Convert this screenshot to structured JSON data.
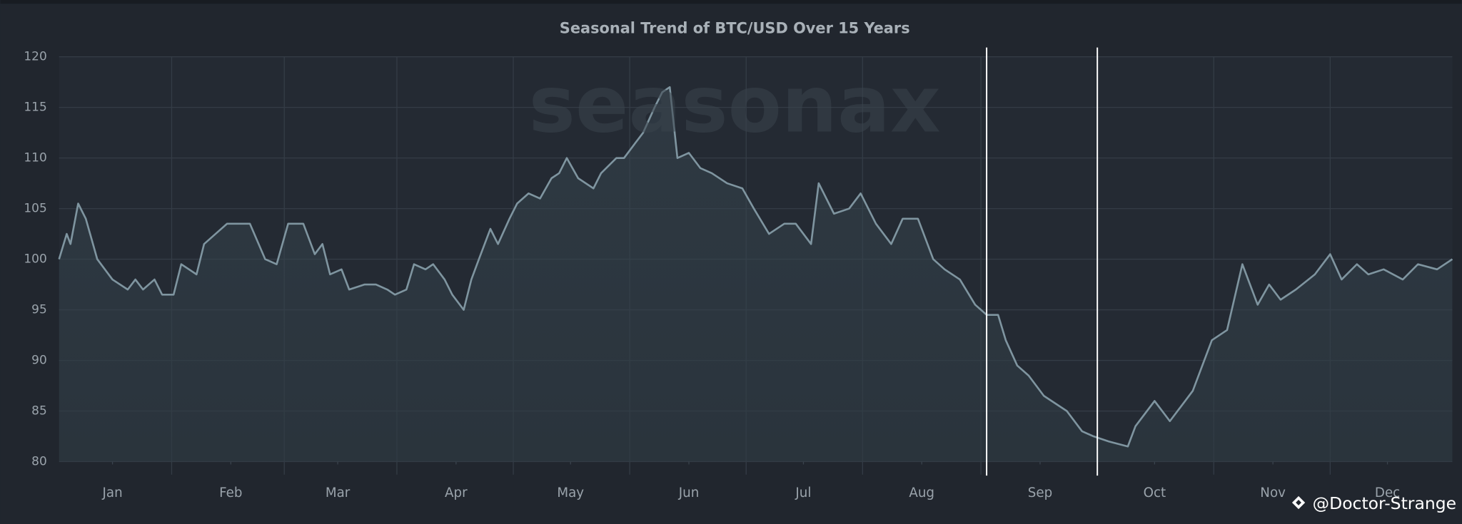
{
  "chart_data": {
    "type": "line",
    "title": "Seasonal Trend of BTC/USD Over 15 Years",
    "watermark": "seasonax",
    "credit": "@Doctor-Strange",
    "x": [
      0,
      2,
      3,
      5,
      7,
      10,
      14,
      18,
      20,
      22,
      25,
      27,
      30,
      32,
      36,
      38,
      41,
      44,
      47,
      50,
      54,
      57,
      60,
      64,
      67,
      69,
      71,
      74,
      76,
      80,
      83,
      86,
      88,
      91,
      93,
      96,
      98,
      101,
      103,
      106,
      108,
      110,
      113,
      115,
      118,
      120,
      123,
      126,
      129,
      131,
      133,
      136,
      140,
      142,
      146,
      148,
      151,
      153,
      156,
      158,
      160,
      162,
      165,
      168,
      171,
      175,
      179,
      182,
      186,
      190,
      193,
      197,
      199,
      203,
      207,
      210,
      214,
      218,
      221,
      225,
      229,
      232,
      236,
      240,
      243,
      246,
      248,
      251,
      254,
      258,
      264,
      268,
      271,
      275,
      280,
      282,
      287,
      291,
      295,
      297,
      302,
      306,
      310,
      314,
      317,
      320,
      324,
      329,
      333,
      336,
      340,
      343,
      347,
      352,
      356,
      361,
      365
    ],
    "values": [
      100,
      102.5,
      101.5,
      105.5,
      104,
      100,
      98,
      97,
      98,
      97,
      98,
      96.5,
      96.5,
      99.5,
      98.5,
      101.5,
      102.5,
      103.5,
      103.5,
      103.5,
      100,
      99.5,
      103.5,
      103.5,
      100.5,
      101.5,
      98.5,
      99,
      97,
      97.5,
      97.5,
      97,
      96.5,
      97,
      99.5,
      99,
      99.5,
      98,
      96.5,
      95,
      98,
      100,
      103,
      101.5,
      104,
      105.5,
      106.5,
      106,
      108,
      108.5,
      110,
      108,
      107,
      108.5,
      110,
      110,
      111.5,
      112.5,
      115,
      116.5,
      117,
      110,
      110.5,
      109,
      108.5,
      107.5,
      107,
      105,
      102.5,
      103.5,
      103.5,
      101.5,
      107.5,
      104.5,
      105,
      106.5,
      103.5,
      101.5,
      104,
      104,
      100,
      99,
      98,
      95.5,
      94.5,
      94.5,
      92,
      89.5,
      88.5,
      86.5,
      85,
      83,
      82.5,
      82,
      81.5,
      83.5,
      86,
      84,
      86,
      87,
      92,
      93,
      99.5,
      95.5,
      97.5,
      96,
      97,
      98.5,
      100.5,
      98,
      99.5,
      98.5,
      99,
      98,
      99.5,
      99,
      100
    ],
    "color": "#7f95a0",
    "xlim": [
      0,
      365
    ],
    "xticks": [
      {
        "value": 14,
        "label": "Jan"
      },
      {
        "value": 45,
        "label": "Feb"
      },
      {
        "value": 73,
        "label": "Mar"
      },
      {
        "value": 104,
        "label": "Apr"
      },
      {
        "value": 134,
        "label": "May"
      },
      {
        "value": 165,
        "label": "Jun"
      },
      {
        "value": 195,
        "label": "Jul"
      },
      {
        "value": 226,
        "label": "Aug"
      },
      {
        "value": 257,
        "label": "Sep"
      },
      {
        "value": 287,
        "label": "Oct"
      },
      {
        "value": 318,
        "label": "Nov"
      },
      {
        "value": 348,
        "label": "Dec"
      }
    ],
    "ylim": [
      80,
      120
    ],
    "yticks": [
      80,
      85,
      90,
      95,
      100,
      105,
      110,
      115,
      120
    ],
    "highlight_x": [
      243,
      272
    ],
    "grid": true
  }
}
